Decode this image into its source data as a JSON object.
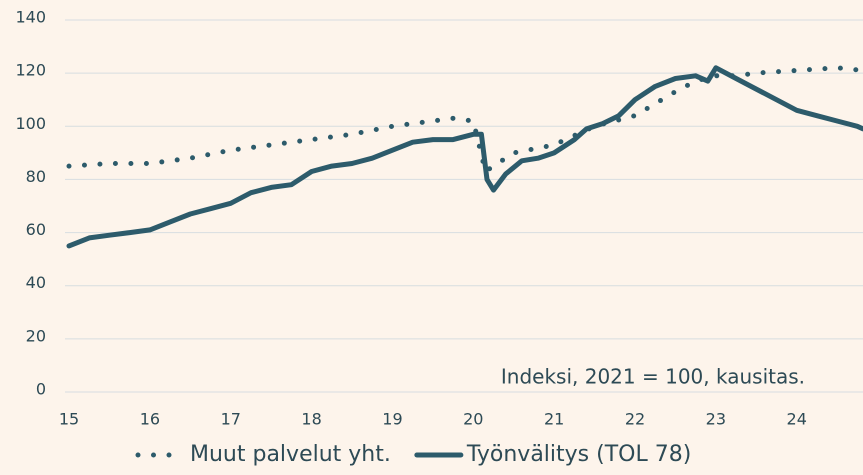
{
  "chart_data": {
    "type": "line",
    "annotation": "Indeksi, 2021 = 100, kausitas.",
    "xlim": [
      14.95,
      24.82
    ],
    "xticks": [
      15,
      16,
      17,
      18,
      19,
      20,
      21,
      22,
      23,
      24
    ],
    "ylim": [
      0,
      140
    ],
    "yticks": [
      0,
      20,
      40,
      60,
      80,
      100,
      120,
      140
    ],
    "grid": true,
    "series": [
      {
        "name": "Muut palvelut yht.",
        "color": "#2d5b6b",
        "style": "dotted",
        "x": [
          15,
          15.5,
          16,
          16.5,
          17,
          17.5,
          18,
          18.5,
          19,
          19.5,
          19.75,
          20.0,
          20.15,
          20.25,
          20.5,
          21.0,
          21.5,
          22.0,
          22.5,
          22.75,
          23.0,
          23.25,
          23.5,
          24.0,
          24.5,
          24.82
        ],
        "values": [
          85,
          86,
          86,
          88,
          91,
          93,
          95,
          97,
          100,
          102,
          103,
          102,
          83,
          85,
          90,
          93,
          100,
          104,
          113,
          117,
          119,
          119,
          120,
          121,
          122,
          121
        ]
      },
      {
        "name": "Työnvälitys (TOL 78)",
        "color": "#2d5b6b",
        "style": "solid",
        "x": [
          15.0,
          15.25,
          15.5,
          15.75,
          16.0,
          16.25,
          16.5,
          16.75,
          17.0,
          17.25,
          17.5,
          17.75,
          18.0,
          18.25,
          18.5,
          18.75,
          19.0,
          19.25,
          19.5,
          19.75,
          20.0,
          20.1,
          20.17,
          20.25,
          20.4,
          20.6,
          20.8,
          21.0,
          21.25,
          21.4,
          21.6,
          21.8,
          22.0,
          22.25,
          22.5,
          22.75,
          22.9,
          23.0,
          23.25,
          23.5,
          23.75,
          24.0,
          24.25,
          24.5,
          24.75,
          24.82
        ],
        "values": [
          55,
          58,
          59,
          60,
          61,
          64,
          67,
          69,
          71,
          75,
          77,
          78,
          83,
          85,
          86,
          88,
          91,
          94,
          95,
          95,
          97,
          97,
          80,
          76,
          82,
          87,
          88,
          90,
          95,
          99,
          101,
          104,
          110,
          115,
          118,
          119,
          117,
          122,
          118,
          114,
          110,
          106,
          104,
          102,
          100,
          99
        ]
      }
    ]
  }
}
